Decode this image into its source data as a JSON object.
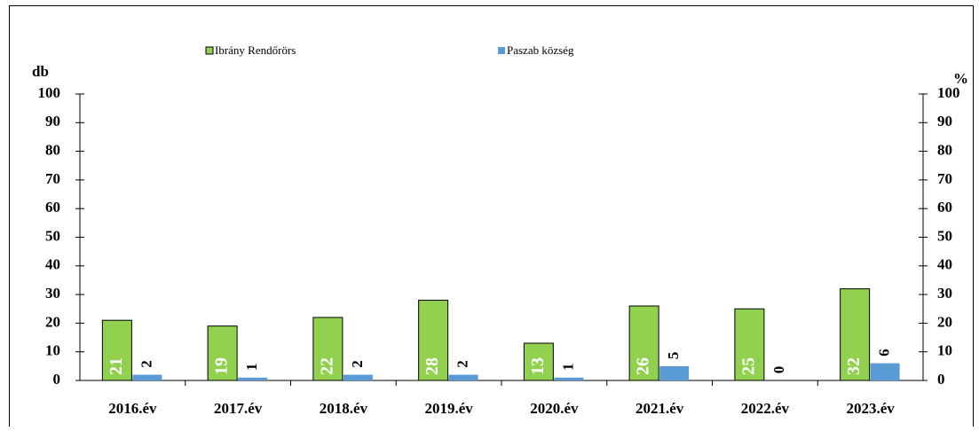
{
  "chart_data": {
    "type": "bar",
    "categories": [
      "2016.év",
      "2017.év",
      "2018.év",
      "2019.év",
      "2020.év",
      "2021.év",
      "2022.év",
      "2023.év"
    ],
    "series": [
      {
        "name": "Ibrány Rendőrörs",
        "color": "#92d050",
        "values": [
          21,
          19,
          22,
          28,
          13,
          26,
          25,
          32
        ]
      },
      {
        "name": "Paszab község",
        "color": "#5b9bd5",
        "values": [
          2,
          1,
          2,
          2,
          1,
          5,
          0,
          6
        ]
      }
    ],
    "ylabel": "db",
    "y2label": "%",
    "ylim": [
      0,
      100
    ],
    "yticks": [
      0,
      10,
      20,
      30,
      40,
      50,
      60,
      70,
      80,
      90,
      100
    ],
    "y2lim": [
      0,
      100
    ],
    "y2ticks": [
      0,
      10,
      20,
      30,
      40,
      50,
      60,
      70,
      80,
      90,
      100
    ],
    "legend": "top"
  }
}
